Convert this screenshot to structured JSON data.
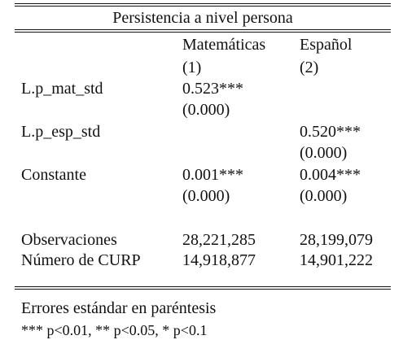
{
  "table": {
    "title": "Persistencia a nivel persona",
    "headers": {
      "col1_name": "Matemáticas",
      "col1_num": "(1)",
      "col2_name": "Español",
      "col2_num": "(2)"
    },
    "rows": [
      {
        "label": "L.p_mat_std",
        "col1": "0.523***",
        "col1_se": "(0.000)",
        "col2": "",
        "col2_se": ""
      },
      {
        "label": "L.p_esp_std",
        "col1": "",
        "col1_se": "",
        "col2": "0.520***",
        "col2_se": "(0.000)"
      },
      {
        "label": "Constante",
        "col1": "0.001***",
        "col1_se": "(0.000)",
        "col2": "0.004***",
        "col2_se": "(0.000)"
      }
    ],
    "stats": [
      {
        "label": "Observaciones",
        "col1": "28,221,285",
        "col2": "28,199,079"
      },
      {
        "label": "Número de CURP",
        "col1": "14,918,877",
        "col2": "14,901,222"
      }
    ],
    "notes": [
      "Errores estándar en paréntesis",
      "*** p<0.01, ** p<0.05, * p<0.1"
    ]
  }
}
